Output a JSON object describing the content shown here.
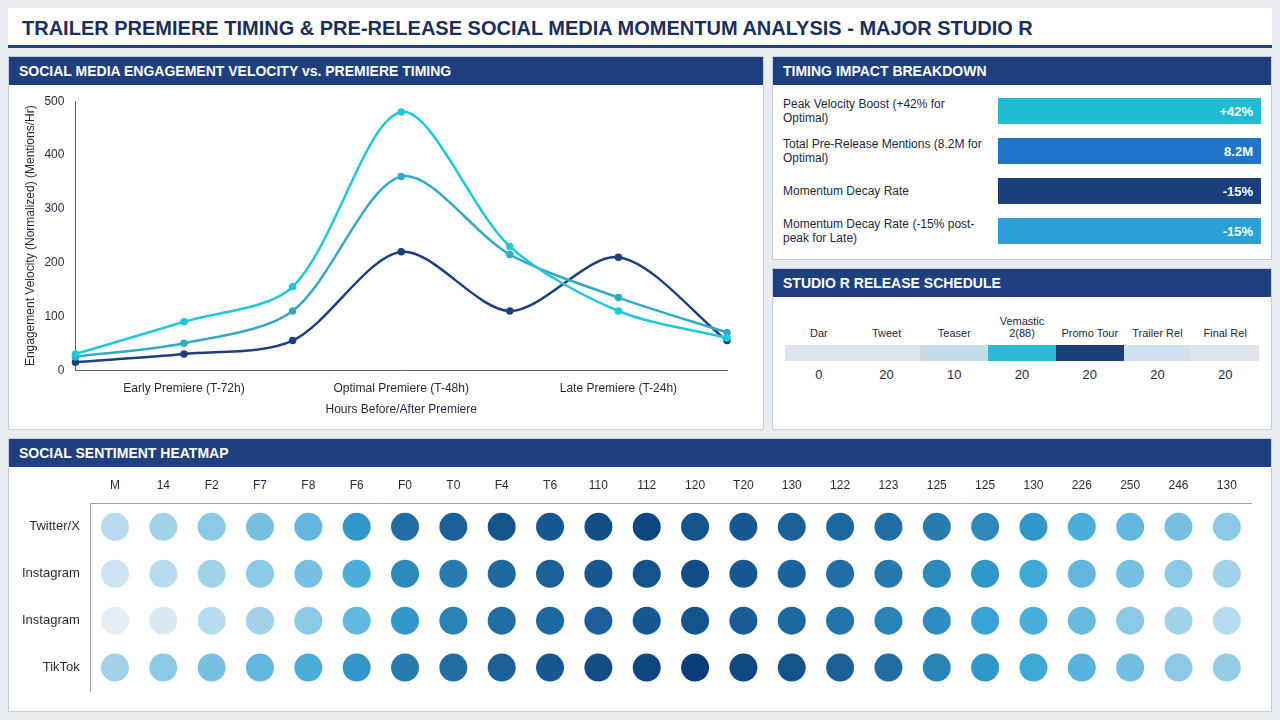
{
  "title": "TRAILER PREMIERE TIMING & PRE-RELEASE SOCIAL MEDIA MOMENTUM ANALYSIS - MAJOR STUDIO R",
  "chart_data": [
    {
      "type": "line",
      "title": "SOCIAL MEDIA ENGAGEMENT VELOCITY vs. PREMIERE TIMING",
      "x_label": "Hours Before/After Premiere",
      "y_label": "Engagement Velocity (Normalized) (Mentions/Hr)",
      "categories": [
        null,
        "Early Premiere (T-72h)",
        null,
        "Optimal Premiere (T-48h)",
        null,
        "Late Premiere (T-24h)",
        null
      ],
      "series": [
        {
          "color": "#1fc8dc",
          "values": [
            30,
            90,
            155,
            480,
            230,
            110,
            60
          ]
        },
        {
          "color": "#34a9c4",
          "values": [
            25,
            50,
            110,
            360,
            215,
            135,
            70
          ]
        },
        {
          "color": "#1d3f80",
          "values": [
            15,
            30,
            55,
            220,
            110,
            210,
            55
          ]
        }
      ],
      "ylim": [
        0,
        500
      ],
      "yticks": [
        0,
        100,
        200,
        300,
        400,
        500
      ],
      "grid": false
    },
    {
      "type": "heatmap",
      "title": "SOCIAL SENTIMENT HEATMAP",
      "categories": [
        "M",
        "14",
        "F2",
        "F7",
        "F8",
        "F6",
        "F0",
        "T0",
        "F4",
        "T6",
        "110",
        "112",
        "120",
        "T20",
        "130",
        "122",
        "123",
        "125",
        "125",
        "130",
        "226",
        "250",
        "246",
        "130"
      ],
      "rows": [
        "Twitter/X",
        "Instagram",
        "Instagram",
        "TikTok"
      ],
      "cells": [
        [
          20,
          25,
          30,
          35,
          40,
          55,
          70,
          75,
          80,
          78,
          82,
          85,
          80,
          78,
          75,
          72,
          70,
          65,
          60,
          55,
          45,
          40,
          35,
          30
        ],
        [
          15,
          20,
          25,
          30,
          35,
          45,
          60,
          65,
          72,
          75,
          78,
          80,
          82,
          78,
          74,
          70,
          66,
          60,
          55,
          48,
          40,
          35,
          30,
          25
        ],
        [
          10,
          12,
          20,
          25,
          30,
          40,
          55,
          62,
          70,
          72,
          75,
          78,
          80,
          76,
          72,
          68,
          62,
          58,
          50,
          45,
          38,
          30,
          25,
          20
        ],
        [
          25,
          30,
          35,
          40,
          45,
          55,
          65,
          70,
          75,
          78,
          82,
          85,
          88,
          84,
          80,
          75,
          70,
          62,
          55,
          48,
          42,
          36,
          30,
          28
        ]
      ]
    }
  ],
  "timing_impact_breakdown": {
    "title": "TIMING IMPACT BREAKDOWN",
    "rows": [
      {
        "label": "Peak Velocity Boost (+42% for Optimal)",
        "value_label": "+42%",
        "color": "#1fbcd4"
      },
      {
        "label": "Total Pre-Release Mentions (8.2M for Optimal)",
        "value_label": "8.2M",
        "color": "#1f74c9"
      },
      {
        "label": "Momentum Decay Rate",
        "value_label": "-15%",
        "color": "#1b3f7a"
      },
      {
        "label": "Momentum Decay Rate (-15% post-peak for Late)",
        "value_label": "-15%",
        "color": "#2b9fd6"
      }
    ]
  },
  "release_schedule": {
    "title": "STUDIO R RELEASE SCHEDULE",
    "columns": [
      {
        "header": "Dar",
        "value": 0,
        "color": "#dfe6ee"
      },
      {
        "header": "Tweet",
        "value": 20,
        "color": "#dfe6ee"
      },
      {
        "header": "Teaser",
        "value": 10,
        "color": "#c6dae9"
      },
      {
        "header": "Vemastic 2(88)",
        "value": 20,
        "color": "#2fb8d6"
      },
      {
        "header": "Promo Tour",
        "value": 20,
        "color": "#1b3f7a"
      },
      {
        "header": "Trailer Rel",
        "value": 20,
        "color": "#cfe0ee"
      },
      {
        "header": "Final Rel",
        "value": 20,
        "color": "#dfe6ee"
      }
    ]
  }
}
